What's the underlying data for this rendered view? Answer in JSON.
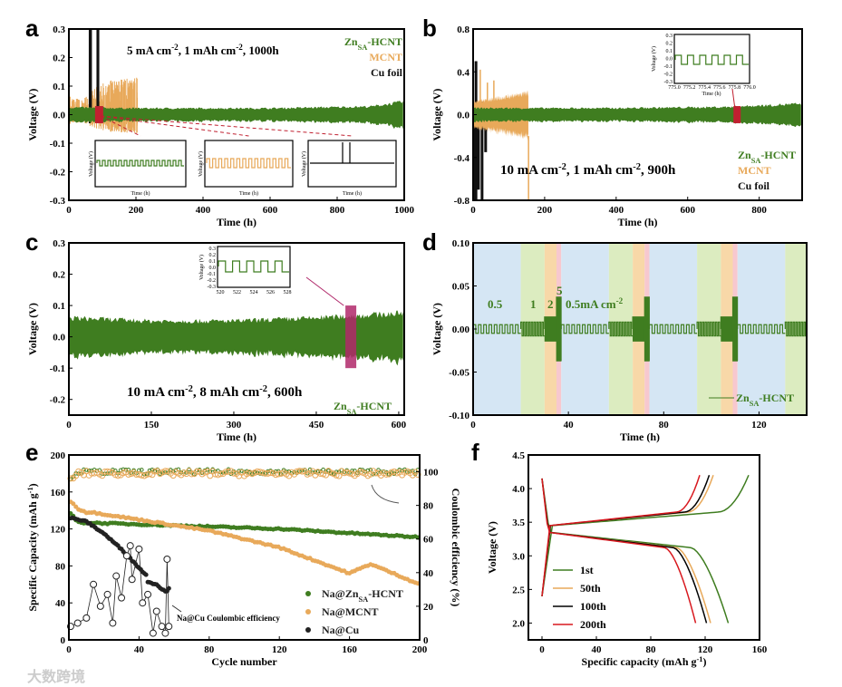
{
  "colors": {
    "zn": "#3f7d20",
    "mcnt": "#e8a95a",
    "cu": "#111111",
    "red": "#c02030",
    "highlight": "#b0286a",
    "band_blue": "#d5e6f4",
    "band_green": "#dcecc0",
    "band_orange": "#f8d8a8",
    "band_pink": "#f7c8cf",
    "f_1st": "#3f7d20",
    "f_50th": "#e8a95a",
    "f_100th": "#000000",
    "f_200th": "#d8181e"
  },
  "watermark": "大数跨境",
  "chart_data": [
    {
      "id": "a",
      "panel_label": "a",
      "type": "line",
      "title": "5 mA cm-2, 1 mAh cm-2, 1000h",
      "title_parts": [
        "5 mA cm",
        "-2",
        ", 1 mAh cm",
        "-2",
        ", 1000h"
      ],
      "xlabel": "Time (h)",
      "ylabel": "Voltage (V)",
      "xlim": [
        0,
        1000
      ],
      "ylim": [
        -0.3,
        0.3
      ],
      "xticks": [
        "0",
        "200",
        "400",
        "600",
        "800",
        "1000"
      ],
      "xtick_values": [
        0,
        200,
        400,
        600,
        800,
        1000
      ],
      "yticks": [
        "0.3",
        "0.2",
        "0.1",
        "0.0",
        "-0.1",
        "-0.2",
        "-0.3"
      ],
      "ytick_values": [
        0.3,
        0.2,
        0.1,
        0,
        -0.1,
        -0.2,
        -0.3
      ],
      "legend": [
        {
          "name": "Zn",
          "sub": "SA",
          "rest": "-HCNT"
        },
        {
          "name": "MCNT"
        },
        {
          "name": "Cu foil"
        }
      ],
      "zn_envelope": [
        [
          0,
          0.025
        ],
        [
          200,
          0.022
        ],
        [
          600,
          0.022
        ],
        [
          900,
          0.028
        ],
        [
          1000,
          0.045
        ]
      ],
      "mcnt_envelope": [
        [
          0,
          0.07
        ],
        [
          40,
          0.05
        ],
        [
          60,
          0.08
        ],
        [
          100,
          0.12
        ],
        [
          205,
          0.13
        ]
      ],
      "cu_range": [
        60,
        90
      ],
      "insets": [
        {
          "xlabel": "Time (h)",
          "ylabel": "Voltage (V)"
        },
        {
          "xlabel": "Time (h)",
          "ylabel": "Voltage (V)"
        },
        {
          "xlabel": "Time (h)",
          "ylabel": "Voltage (V)"
        }
      ]
    },
    {
      "id": "b",
      "panel_label": "b",
      "type": "line",
      "title": "10 mA cm-2, 1 mAh cm-2, 900h",
      "title_parts": [
        "10 mA cm",
        "-2",
        ", 1 mAh cm",
        "-2",
        ", 900h"
      ],
      "xlabel": "Time (h)",
      "ylabel": "Voltage (V)",
      "xlim": [
        0,
        920
      ],
      "ylim": [
        -0.8,
        0.8
      ],
      "xticks": [
        "0",
        "200",
        "400",
        "600",
        "800"
      ],
      "xtick_values": [
        0,
        200,
        400,
        600,
        800
      ],
      "yticks": [
        "0.8",
        "0.4",
        "0.0",
        "-0.4",
        "-0.8"
      ],
      "ytick_values": [
        0.8,
        0.4,
        0,
        -0.4,
        -0.8
      ],
      "legend": [
        {
          "name": "Zn",
          "sub": "SA",
          "rest": "-HCNT"
        },
        {
          "name": "MCNT"
        },
        {
          "name": "Cu foil"
        }
      ],
      "zn_envelope": [
        [
          0,
          0.06
        ],
        [
          400,
          0.06
        ],
        [
          700,
          0.07
        ],
        [
          920,
          0.1
        ]
      ],
      "mcnt_envelope": [
        [
          0,
          0.12
        ],
        [
          50,
          0.14
        ],
        [
          155,
          0.2
        ]
      ],
      "cu_range": [
        0,
        40
      ],
      "inset": {
        "xlabel": "Time (h)",
        "ylabel": "Voltage (V)",
        "xticks": [
          "775.0",
          "775.2",
          "775.4",
          "775.6",
          "775.8",
          "776.0"
        ],
        "yticks": [
          "0.3",
          "0.2",
          "0.1",
          "0.0",
          "-0.1",
          "-0.2",
          "-0.3"
        ]
      }
    },
    {
      "id": "c",
      "panel_label": "c",
      "type": "line",
      "title": "10 mA cm-2, 8 mAh cm-2, 600h",
      "title_parts": [
        "10 mA cm",
        "-2",
        ", 8 mAh cm",
        "-2",
        ", 600h"
      ],
      "xlabel": "Time (h)",
      "ylabel": "Voltage (V)",
      "xlim": [
        0,
        610
      ],
      "ylim": [
        -0.25,
        0.3
      ],
      "xticks": [
        "0",
        "150",
        "300",
        "450",
        "600"
      ],
      "xtick_values": [
        0,
        150,
        300,
        450,
        600
      ],
      "yticks": [
        "0.3",
        "0.2",
        "0.1",
        "0.0",
        "-0.1",
        "-0.2"
      ],
      "ytick_values": [
        0.3,
        0.2,
        0.1,
        0,
        -0.1,
        -0.2
      ],
      "legend": [
        {
          "name": "Zn",
          "sub": "SA",
          "rest": "-HCNT"
        }
      ],
      "zn_envelope": [
        [
          0,
          0.06
        ],
        [
          150,
          0.05
        ],
        [
          300,
          0.05
        ],
        [
          450,
          0.06
        ],
        [
          610,
          0.075
        ]
      ],
      "inset": {
        "xlabel": "Time (h)",
        "ylabel": "Voltage (V)",
        "xticks": [
          "520",
          "522",
          "524",
          "526",
          "528"
        ],
        "yticks": [
          "0.3",
          "0.2",
          "0.1",
          "0.0",
          "-0.1",
          "-0.2",
          "-0.3"
        ]
      }
    },
    {
      "id": "d",
      "panel_label": "d",
      "type": "line",
      "title": "",
      "xlabel": "Time (h)",
      "ylabel": "Voltage (V)",
      "xlim": [
        0,
        140
      ],
      "ylim": [
        -0.1,
        0.1
      ],
      "xticks": [
        "0",
        "40",
        "80",
        "120"
      ],
      "xtick_values": [
        0,
        40,
        80,
        120
      ],
      "yticks": [
        "0.10",
        "0.05",
        "0.00",
        "-0.05",
        "-0.10"
      ],
      "ytick_values": [
        0.1,
        0.05,
        0,
        -0.05,
        -0.1
      ],
      "legend": [
        {
          "name": "Zn",
          "sub": "SA",
          "rest": "-HCNT"
        }
      ],
      "rate_labels": [
        "0.5",
        "1",
        "2",
        "5",
        "0.5mA cm",
        "-2"
      ],
      "segments": [
        [
          0,
          20,
          0.5
        ],
        [
          20,
          30,
          1
        ],
        [
          30,
          35,
          2
        ],
        [
          35,
          37,
          5
        ],
        [
          37,
          57,
          0.5
        ],
        [
          57,
          67,
          1
        ],
        [
          67,
          72,
          2
        ],
        [
          72,
          74,
          5
        ],
        [
          74,
          94,
          0.5
        ],
        [
          94,
          104,
          1
        ],
        [
          104,
          109,
          2
        ],
        [
          109,
          111,
          5
        ],
        [
          111,
          131,
          0.5
        ],
        [
          131,
          140,
          1
        ]
      ],
      "amplitude_by_rate": {
        "0.5": 0.005,
        "1": 0.008,
        "2": 0.014,
        "5": 0.037
      }
    },
    {
      "id": "e",
      "panel_label": "e",
      "type": "scatter",
      "xlabel": "Cycle number",
      "ylabel": "Specific Capacity (mAh g-1)",
      "ylabel_parts": [
        "Specific Capacity (mAh g",
        "-1",
        ")"
      ],
      "y2label": "Coulombic efficiency  (%)",
      "xlim": [
        0,
        200
      ],
      "ylim": [
        0,
        200
      ],
      "y2lim": [
        0,
        110
      ],
      "xticks": [
        "0",
        "40",
        "80",
        "120",
        "160",
        "200"
      ],
      "xtick_values": [
        0,
        40,
        80,
        120,
        160,
        200
      ],
      "yticks": [
        "200",
        "160",
        "120",
        "80",
        "40",
        "0"
      ],
      "ytick_values": [
        200,
        160,
        120,
        80,
        40,
        0
      ],
      "y2ticks": [
        "100",
        "80",
        "60",
        "40",
        "20",
        "0"
      ],
      "y2tick_values": [
        100,
        80,
        60,
        40,
        20,
        0
      ],
      "annotation": "Na@Cu Coulombic efficiency",
      "legend": [
        {
          "name": "Na@Zn",
          "sub": "SA",
          "rest": "-HCNT"
        },
        {
          "name": "Na@MCNT"
        },
        {
          "name": "Na@Cu"
        }
      ],
      "series": [
        {
          "name": "Na@ZnSA-HCNT capacity",
          "points": [
            [
              1,
              137
            ],
            [
              5,
              127
            ],
            [
              40,
              125
            ],
            [
              120,
              120
            ],
            [
              200,
              111
            ]
          ]
        },
        {
          "name": "Na@MCNT capacity",
          "points": [
            [
              1,
              150
            ],
            [
              5,
              142
            ],
            [
              10,
              138
            ],
            [
              13,
              138
            ],
            [
              40,
              130
            ],
            [
              80,
              118
            ],
            [
              120,
              100
            ],
            [
              160,
              72
            ],
            [
              172,
              82
            ],
            [
              190,
              68
            ],
            [
              200,
              60
            ]
          ]
        },
        {
          "name": "Na@Cu capacity",
          "points": [
            [
              1,
              132
            ],
            [
              10,
              128
            ],
            [
              20,
              115
            ],
            [
              30,
              98
            ],
            [
              40,
              78
            ],
            [
              44,
              70
            ],
            [
              45,
              63
            ],
            [
              50,
              60
            ],
            [
              55,
              52
            ],
            [
              57,
              55
            ]
          ]
        },
        {
          "name": "Na@ZnSA-HCNT CE",
          "axis": "right",
          "points": [
            [
              1,
              97
            ],
            [
              5,
              100
            ],
            [
              200,
              100
            ]
          ]
        },
        {
          "name": "Na@MCNT CE",
          "axis": "right",
          "points": [
            [
              1,
              95
            ],
            [
              5,
              99
            ],
            [
              200,
              99
            ]
          ]
        },
        {
          "name": "Na@Cu CE",
          "axis": "right",
          "points": [
            [
              1,
              8
            ],
            [
              5,
              10
            ],
            [
              10,
              13
            ],
            [
              14,
              33
            ],
            [
              18,
              20
            ],
            [
              22,
              27
            ],
            [
              25,
              10
            ],
            [
              27,
              38
            ],
            [
              30,
              25
            ],
            [
              33,
              50
            ],
            [
              35,
              56
            ],
            [
              36,
              36
            ],
            [
              40,
              54
            ],
            [
              42,
              22
            ],
            [
              45,
              27
            ],
            [
              48,
              4
            ],
            [
              50,
              17
            ],
            [
              53,
              8
            ],
            [
              55,
              4
            ],
            [
              56,
              48
            ],
            [
              57,
              8
            ]
          ]
        }
      ]
    },
    {
      "id": "f",
      "panel_label": "f",
      "type": "line",
      "xlabel": "Specific capacity (mAh g-1)",
      "xlabel_parts": [
        "Specific capacity (mAh g",
        "-1",
        ")"
      ],
      "ylabel": "Voltage (V)",
      "xlim": [
        -10,
        160
      ],
      "ylim": [
        1.75,
        4.5
      ],
      "xticks": [
        "0",
        "40",
        "80",
        "120",
        "160"
      ],
      "xtick_values": [
        0,
        40,
        80,
        120,
        160
      ],
      "yticks": [
        "4.5",
        "4.0",
        "3.5",
        "3.0",
        "2.5",
        "2.0"
      ],
      "ytick_values": [
        4.5,
        4,
        3.5,
        3,
        2.5,
        2
      ],
      "series": [
        {
          "name": "1st",
          "charge_capacity": 152,
          "discharge_capacity": 137
        },
        {
          "name": "50th",
          "charge_capacity": 126,
          "discharge_capacity": 124
        },
        {
          "name": "100th",
          "charge_capacity": 123,
          "discharge_capacity": 121
        },
        {
          "name": "200th",
          "charge_capacity": 116,
          "discharge_capacity": 113
        }
      ]
    }
  ]
}
